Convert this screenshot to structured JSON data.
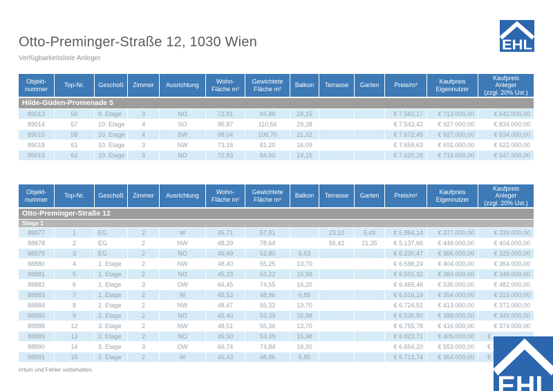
{
  "header": {
    "title": "Otto-Preminger-Straße 12, 1030 Wien",
    "subtitle": "Verfügbarkeitsliste Anleger"
  },
  "logo": {
    "text": "EHL",
    "color": "#2b66ae"
  },
  "colors": {
    "table_header_blue": "#3d7ab6",
    "row_stripe_blue": "#d6ebf7",
    "section_band_gray": "#9d9d9d",
    "subsection_band_gray": "#b5b5b5",
    "logo_blue": "#2b66ae"
  },
  "columns": [
    "Objekt-\nnummer",
    "Top-Nr.",
    "Geschoß",
    "Zimmer",
    "Ausrichtung",
    "Wohn-\nFläche m²",
    "Gewichtete\nFläche m²",
    "Balkon",
    "Terrasse",
    "Garten",
    "Preis/m²",
    "Kaufpreis\nEigennutzer",
    "Kaufpreis\nAnleger\n(zzgl. 20% Ust.)"
  ],
  "tables": [
    {
      "section": "Hilde-Güden-Promenade 5",
      "subsection": null,
      "rows": [
        [
          "89013",
          "56",
          "9. Etage",
          "3",
          "NO",
          "72,81",
          "84,88",
          "24,15",
          "",
          "",
          "€ 7.563,17",
          "€ 713.000,00",
          "€ 642.000,00"
        ],
        [
          "89014",
          "57",
          "10. Etage",
          "4",
          "SO",
          "95,87",
          "110,56",
          "29,38",
          "",
          "",
          "€ 7.543,42",
          "€ 927.000,00",
          "€ 834.000,00"
        ],
        [
          "89015",
          "58",
          "10. Etage",
          "4",
          "SW",
          "98,04",
          "108,70",
          "21,32",
          "",
          "",
          "€ 7.672,49",
          "€ 927.000,00",
          "€ 834.000,00"
        ],
        [
          "89018",
          "61",
          "10. Etage",
          "3",
          "NW",
          "73,16",
          "81,20",
          "16,09",
          "",
          "",
          "€ 7.659,63",
          "€ 691.000,00",
          "€ 622.000,00"
        ],
        [
          "89019",
          "62",
          "10. Etage",
          "3",
          "NO",
          "72,83",
          "84,90",
          "24,15",
          "",
          "",
          "€ 7.620,28",
          "€ 719.000,00",
          "€ 647.000,00"
        ]
      ]
    },
    {
      "section": "Otto-Preminger-Straße 12",
      "subsection": "Stiege 1",
      "rows": [
        [
          "88877",
          "1",
          "EG",
          "2",
          "W",
          "45,71",
          "57,81",
          "",
          "23,10",
          "5,49",
          "€ 5.864,14",
          "€ 377.000,00",
          "€ 339.000,00"
        ],
        [
          "88878",
          "2",
          "EG",
          "2",
          "NW",
          "48,29",
          "78,64",
          "",
          "56,42",
          "21,35",
          "€ 5.137,66",
          "€ 449.000,00",
          "€ 404.000,00"
        ],
        [
          "88879",
          "3",
          "EG",
          "2",
          "NO",
          "49,49",
          "52,80",
          "6,63",
          "",
          "",
          "€ 6.230,47",
          "€ 366.000,00",
          "€ 329.000,00"
        ],
        [
          "88880",
          "4",
          "1. Etage",
          "2",
          "NW",
          "48,40",
          "55,25",
          "13,70",
          "",
          "",
          "€ 6.588,24",
          "€ 404.000,00",
          "€ 364.000,00"
        ],
        [
          "88881",
          "5",
          "1. Etage",
          "2",
          "NO",
          "45,23",
          "53,22",
          "15,98",
          "",
          "",
          "€ 6.501,32",
          "€ 384.000,00",
          "€ 346.000,00"
        ],
        [
          "88882",
          "6",
          "1. Etage",
          "3",
          "OW",
          "66,45",
          "74,55",
          "16,20",
          "",
          "",
          "€ 6.465,46",
          "€ 535.000,00",
          "€ 482.000,00"
        ],
        [
          "88883",
          "7",
          "1. Etage",
          "2",
          "W",
          "45,53",
          "48,96",
          "6,85",
          "",
          "",
          "€ 6.516,19",
          "€ 354.000,00",
          "€ 319.000,00"
        ],
        [
          "88884",
          "8",
          "2. Etage",
          "2",
          "NW",
          "48,47",
          "55,32",
          "13,70",
          "",
          "",
          "€ 6.724,51",
          "€ 413.000,00",
          "€ 372.000,00"
        ],
        [
          "88885",
          "9",
          "2. Etage",
          "2",
          "NO",
          "45,40",
          "53,39",
          "15,98",
          "",
          "",
          "€ 6.536,80",
          "€ 388.000,00",
          "€ 349.000,00"
        ],
        [
          "88888",
          "12",
          "3. Etage",
          "2",
          "NW",
          "48,51",
          "55,36",
          "13,70",
          "",
          "",
          "€ 6.755,78",
          "€ 416.000,00",
          "€ 374.000,00"
        ],
        [
          "88889",
          "13",
          "3. Etage",
          "2",
          "NO",
          "45,50",
          "53,49",
          "15,98",
          "",
          "",
          "€ 6.823,71",
          "€ 405.000,00",
          "€"
        ],
        [
          "88890",
          "14",
          "3. Etage",
          "3",
          "OW",
          "66,74",
          "74,84",
          "16,20",
          "",
          "",
          "€ 6.654,20",
          "€ 553.000,00",
          "€"
        ],
        [
          "88891",
          "15",
          "3. Etage",
          "2",
          "W",
          "45,43",
          "48,86",
          "6,85",
          "",
          "",
          "€ 6.713,74",
          "€ 364.000,00",
          "€"
        ]
      ]
    }
  ],
  "footer": {
    "disclaimer": "Irrtum und Fehler vorbehalten."
  }
}
